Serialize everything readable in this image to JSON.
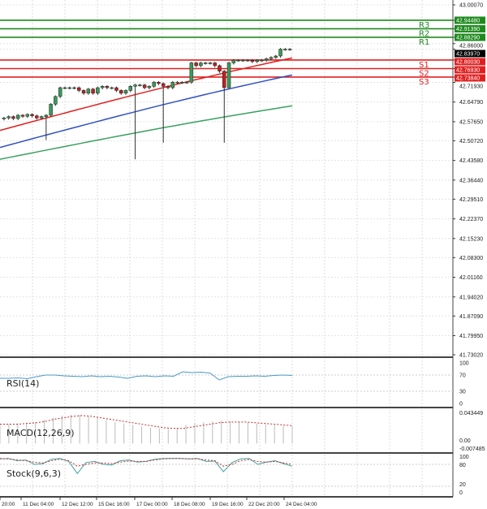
{
  "chart_data": {
    "type": "candlestick",
    "price_axis_labels": [
      "43.00070",
      "42.94480",
      "42.91390",
      "42.88290",
      "42.86000",
      "42.83970",
      "42.80030",
      "42.76930",
      "42.73840",
      "42.71930",
      "42.64790",
      "42.57650",
      "42.50720",
      "42.43580",
      "42.36440",
      "42.29510",
      "42.22370",
      "42.15230",
      "42.08300",
      "42.01160",
      "41.94020",
      "41.87090",
      "41.79950",
      "41.73020"
    ],
    "ylim": [
      41.7302,
      43.0007
    ],
    "current_price": "42.83970",
    "levels": [
      {
        "name": "R3",
        "value": 42.9448,
        "label": "42.94480",
        "color": "#1e8a1e"
      },
      {
        "name": "R2",
        "value": 42.9139,
        "label": "42.91390",
        "color": "#1e8a1e"
      },
      {
        "name": "R1",
        "value": 42.8829,
        "label": "42.88290",
        "color": "#1e8a1e"
      },
      {
        "name": "S1",
        "value": 42.8003,
        "label": "42.80030",
        "color": "#e02020"
      },
      {
        "name": "S2",
        "value": 42.7693,
        "label": "42.76930",
        "color": "#e02020"
      },
      {
        "name": "S3",
        "value": 42.7384,
        "label": "42.73840",
        "color": "#e02020"
      }
    ],
    "closes": [
      42.59,
      42.595,
      42.588,
      42.6,
      42.596,
      42.603,
      42.598,
      42.59,
      42.595,
      42.6,
      42.64,
      42.668,
      42.7,
      42.7,
      42.7,
      42.7,
      42.69,
      42.68,
      42.695,
      42.68,
      42.7,
      42.705,
      42.7,
      42.7,
      42.69,
      42.68,
      42.69,
      42.705,
      42.71,
      42.71,
      42.7,
      42.705,
      42.72,
      42.715,
      42.705,
      42.7,
      42.72,
      42.72,
      42.72,
      42.72,
      42.79,
      42.78,
      42.79,
      42.79,
      42.79,
      42.78,
      42.76,
      42.7,
      42.79,
      42.8,
      42.8,
      42.8,
      42.8,
      42.795,
      42.8,
      42.8,
      42.805,
      42.81,
      42.815,
      42.84,
      42.84,
      42.84
    ],
    "long_wicks": [
      {
        "index": 9,
        "low": 42.51
      },
      {
        "index": 28,
        "low": 42.44
      },
      {
        "index": 34,
        "low": 42.5
      },
      {
        "index": 47,
        "low": 42.5
      }
    ],
    "moving_averages": [
      {
        "color": "#e02020",
        "start": 42.545,
        "end": 42.808
      },
      {
        "color": "#3050c0",
        "start": 42.483,
        "end": 42.746
      },
      {
        "color": "#3aa060",
        "start": 42.44,
        "end": 42.634
      }
    ],
    "time_labels": [
      "20:00",
      "11 Dec 04:00",
      "12 Dec 12:00",
      "15 Dec 16:00",
      "17 Dec 00:00",
      "18 Dec 08:00",
      "19 Dec 16:00",
      "22 Dec 20:00",
      "24 Dec 04:00"
    ],
    "rsi": {
      "name": "RSI(14)",
      "axis": [
        "100",
        "70",
        "30",
        "0"
      ],
      "values": [
        62,
        62,
        63,
        61,
        66,
        70,
        70,
        68,
        67,
        66,
        68,
        66,
        67,
        65,
        62,
        67,
        68,
        66,
        68,
        67,
        78,
        76,
        77,
        75,
        58,
        66,
        67,
        67,
        68,
        67,
        69,
        70,
        69
      ]
    },
    "macd": {
      "name": "MACD(12,26,9)",
      "axis": [
        "0.043449",
        "0.00",
        "-0.007485"
      ],
      "hist": [
        0.026,
        0.027,
        0.028,
        0.029,
        0.03,
        0.033,
        0.036,
        0.039,
        0.04,
        0.04,
        0.038,
        0.036,
        0.033,
        0.03,
        0.028,
        0.026,
        0.024,
        0.022,
        0.021,
        0.02,
        0.022,
        0.026,
        0.028,
        0.03,
        0.031,
        0.032,
        0.031,
        0.03,
        0.029,
        0.028,
        0.027,
        0.026,
        0.025,
        0.024
      ],
      "signal": [
        0.027,
        0.027,
        0.027,
        0.028,
        0.029,
        0.031,
        0.034,
        0.036,
        0.038,
        0.039,
        0.038,
        0.036,
        0.034,
        0.032,
        0.03,
        0.028,
        0.026,
        0.024,
        0.022,
        0.021,
        0.021,
        0.023,
        0.025,
        0.027,
        0.029,
        0.03,
        0.03,
        0.03,
        0.029,
        0.028,
        0.027,
        0.026,
        0.025
      ]
    },
    "stoch": {
      "name": "Stock(9,6,3)",
      "axis": [
        "100",
        "80",
        "20",
        "0"
      ],
      "main": [
        95,
        96,
        90,
        92,
        80,
        82,
        94,
        96,
        88,
        55,
        85,
        88,
        80,
        78,
        90,
        92,
        86,
        88,
        94,
        96,
        96,
        96,
        95,
        96,
        88,
        89,
        60,
        85,
        95,
        96,
        80,
        86,
        90,
        82,
        75
      ],
      "signal": [
        96,
        95,
        92,
        90,
        86,
        84,
        90,
        94,
        90,
        75,
        80,
        84,
        84,
        82,
        86,
        89,
        88,
        88,
        92,
        95,
        96,
        96,
        95,
        95,
        92,
        90,
        75,
        80,
        90,
        93,
        88,
        86,
        88,
        84,
        80
      ]
    }
  }
}
